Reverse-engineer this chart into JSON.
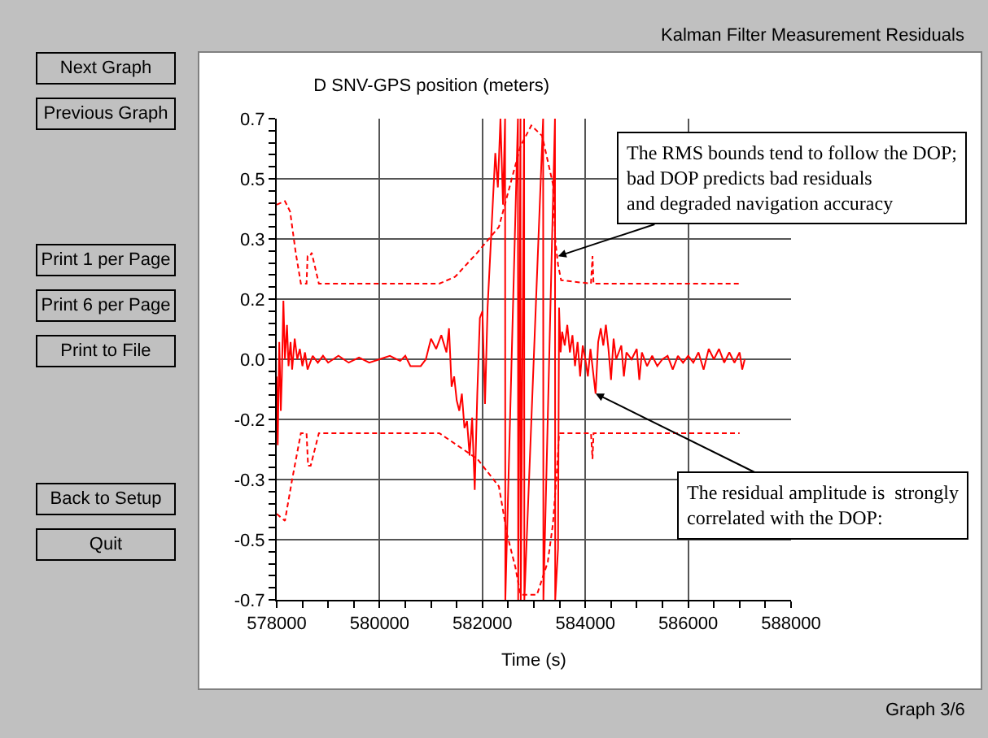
{
  "chart_data": {
    "type": "line",
    "title": "D SNV-GPS position (meters)",
    "xlabel": "Time (s)",
    "xlim": [
      578000,
      588000
    ],
    "xticks": [
      578000,
      580000,
      582000,
      584000,
      586000,
      588000
    ],
    "ylim": [
      -0.7,
      0.7
    ],
    "yticks": [
      {
        "value": -0.7,
        "label": "-0.7"
      },
      {
        "value": -0.525,
        "label": "-0.5"
      },
      {
        "value": -0.35,
        "label": "-0.3"
      },
      {
        "value": -0.175,
        "label": "-0.2"
      },
      {
        "value": 0,
        "label": "0.0"
      },
      {
        "value": 0.175,
        "label": "0.2"
      },
      {
        "value": 0.35,
        "label": "0.3"
      },
      {
        "value": 0.525,
        "label": "0.5"
      },
      {
        "value": 0.7,
        "label": "0.7"
      }
    ],
    "grid": true,
    "marker": "none",
    "series": [
      {
        "color": "#ff0000",
        "line_style": "solid",
        "x": [
          578000,
          578020,
          578050,
          578080,
          578100,
          578130,
          578160,
          578200,
          578230,
          578270,
          578300,
          578350,
          578400,
          578450,
          578500,
          578550,
          578600,
          578700,
          578800,
          578900,
          579000,
          579200,
          579400,
          579600,
          579800,
          580000,
          580200,
          580400,
          580500,
          580600,
          580800,
          580900,
          581000,
          581100,
          581200,
          581300,
          581350,
          581400,
          581450,
          581500,
          581550,
          581600,
          581650,
          581700,
          581750,
          581800,
          581850,
          581900,
          581950,
          582000,
          582050,
          582100,
          582150,
          582200,
          582250,
          582300,
          582350,
          582400,
          582440,
          582445,
          582690,
          582695,
          582740,
          582745,
          582810,
          582815,
          583180,
          583185,
          583410,
          583415,
          583470,
          583490,
          583520,
          583550,
          583600,
          583650,
          583700,
          583750,
          583800,
          583850,
          583900,
          583950,
          584000,
          584050,
          584100,
          584200,
          584250,
          584300,
          584350,
          584400,
          584450,
          584500,
          584550,
          584600,
          584700,
          584750,
          584800,
          584900,
          585000,
          585050,
          585100,
          585200,
          585300,
          585400,
          585500,
          585600,
          585700,
          585800,
          585900,
          586000,
          586100,
          586200,
          586300,
          586400,
          586500,
          586600,
          586700,
          586800,
          586900,
          587000,
          587050,
          587100
        ],
        "values": [
          -0.05,
          -0.25,
          0.05,
          -0.15,
          -0.05,
          0.17,
          0.0,
          0.1,
          -0.02,
          0.05,
          -0.03,
          0.06,
          0.0,
          0.03,
          -0.02,
          0.02,
          -0.03,
          0.01,
          -0.01,
          0.01,
          -0.01,
          0.01,
          -0.01,
          0.005,
          -0.01,
          0.0,
          0.01,
          -0.005,
          0.01,
          -0.02,
          -0.02,
          0.0,
          0.06,
          0.03,
          0.07,
          0.02,
          0.09,
          -0.08,
          -0.05,
          -0.12,
          -0.15,
          -0.1,
          -0.2,
          -0.18,
          -0.28,
          -0.17,
          -0.38,
          -0.1,
          0.12,
          0.14,
          -0.13,
          0.15,
          0.3,
          0.45,
          0.6,
          0.5,
          0.7,
          0.45,
          0.7,
          -0.7,
          0.7,
          -0.7,
          0.7,
          -0.7,
          0.7,
          -0.7,
          0.7,
          -0.7,
          0.7,
          -0.7,
          -0.55,
          0.15,
          0.02,
          0.08,
          0.04,
          0.1,
          0.02,
          0.07,
          -0.02,
          0.05,
          -0.05,
          0.04,
          0.0,
          -0.05,
          0.03,
          -0.1,
          0.05,
          0.09,
          0.04,
          0.1,
          0.03,
          -0.06,
          0.06,
          0.0,
          0.04,
          -0.05,
          0.02,
          0.0,
          0.03,
          -0.06,
          0.02,
          -0.02,
          0.01,
          -0.02,
          0.0,
          0.01,
          -0.03,
          0.01,
          -0.01,
          0.01,
          -0.01,
          0.02,
          -0.03,
          0.03,
          0.0,
          0.03,
          -0.01,
          0.02,
          -0.01,
          0.02,
          -0.03,
          0.0
        ]
      },
      {
        "color": "#ff0000",
        "line_style": "dashed",
        "x": [
          578000,
          578160,
          578260,
          578370,
          578470,
          578580,
          578600,
          578650,
          578680,
          578820,
          579580,
          580000,
          581160,
          581470,
          581900,
          582320,
          582740,
          582950,
          583160,
          583370,
          583420,
          583470,
          583530,
          584110,
          584140,
          584160,
          587000
        ],
        "values": [
          0.45,
          0.46,
          0.43,
          0.31,
          0.22,
          0.22,
          0.3,
          0.3,
          0.31,
          0.22,
          0.22,
          0.22,
          0.22,
          0.24,
          0.31,
          0.385,
          0.62,
          0.68,
          0.65,
          0.51,
          0.34,
          0.275,
          0.23,
          0.22,
          0.3,
          0.22,
          0.22
        ]
      },
      {
        "color": "#ff0000",
        "line_style": "dashed",
        "x": [
          578000,
          578160,
          578300,
          578470,
          578580,
          578610,
          578660,
          578820,
          581160,
          581900,
          582320,
          582480,
          582640,
          582740,
          583060,
          583270,
          583370,
          583450,
          583490,
          584110,
          584140,
          584160,
          587000
        ],
        "values": [
          -0.45,
          -0.47,
          -0.35,
          -0.215,
          -0.215,
          -0.31,
          -0.31,
          -0.215,
          -0.215,
          -0.29,
          -0.37,
          -0.51,
          -0.605,
          -0.685,
          -0.685,
          -0.59,
          -0.48,
          -0.32,
          -0.215,
          -0.215,
          -0.29,
          -0.215,
          -0.215
        ]
      }
    ],
    "annotations": [
      "Kalman Filter Measurement Residuals",
      "Graph 3/6",
      "Next Graph",
      "Previous Graph",
      "Print 1 per Page",
      "Print 6 per Page",
      "Print to File",
      "Back to Setup",
      "Quit",
      {
        "text": "The RMS bounds tend to follow the DOP;\nbad DOP predicts bad residuals\nand degraded navigation accuracy",
        "x": 583470,
        "y": 0.3
      },
      {
        "text": "The residual amplitude is  strongly\ncorrelated with the DOP:",
        "x": 584200,
        "y": -0.1
      }
    ]
  }
}
